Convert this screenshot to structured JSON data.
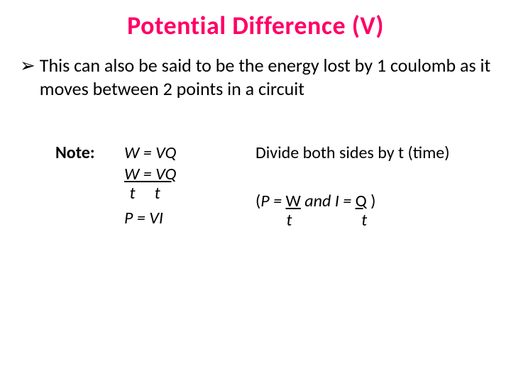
{
  "title": {
    "text": "Potential Difference (V)",
    "color": "#ff0066",
    "fontsize": 36,
    "fontweight": 900
  },
  "bullet": {
    "marker": "➢",
    "text": "This can also be said to be the energy lost by 1 coulomb as it moves between 2 points in a circuit",
    "fontsize": 26,
    "color": "#000000"
  },
  "note_label": "Note:",
  "equations": {
    "line1": "W = VQ",
    "line2_underlined": "W = VQ",
    "line3_denom_left": "t",
    "line3_denom_right": "t",
    "line4": "P = VI"
  },
  "explain": {
    "line1": "Divide both sides by t (time)",
    "paren_open": "(",
    "p_eq": "P = ",
    "w_frac": "W",
    "and_text": "  and  ",
    "i_eq": "I = ",
    "q_frac": "Q",
    "paren_close": "  )",
    "denom_t1": "t",
    "denom_t2": "t"
  },
  "colors": {
    "background": "#ffffff",
    "text": "#000000",
    "title": "#ff0066"
  }
}
